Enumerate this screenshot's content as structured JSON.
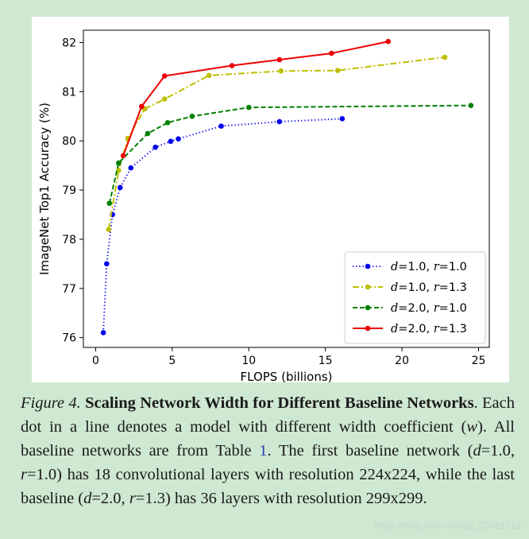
{
  "chart_data": {
    "type": "line",
    "xlabel": "FLOPS (billions)",
    "ylabel": "ImageNet Top1 Accuracy (%)",
    "xlim": [
      -0.8,
      25.7
    ],
    "ylim": [
      75.8,
      82.25
    ],
    "xticks": [
      0,
      5,
      10,
      15,
      20,
      25
    ],
    "yticks": [
      76,
      77,
      78,
      79,
      80,
      81,
      82
    ],
    "legend_position": "lower-right",
    "series": [
      {
        "name": "d=1.0, r=1.0",
        "legend_label": [
          "d",
          "=1.0, ",
          "r",
          "=1.0"
        ],
        "color": "#0000ee",
        "linestyle": "dotted",
        "x": [
          0.5,
          0.72,
          1.1,
          1.6,
          2.3,
          3.9,
          4.9,
          5.4,
          8.2,
          12.0,
          16.1
        ],
        "y": [
          76.1,
          77.5,
          78.5,
          79.05,
          79.45,
          79.87,
          79.99,
          80.04,
          80.3,
          80.39,
          80.45
        ]
      },
      {
        "name": "d=1.0, r=1.3",
        "legend_label": [
          "d",
          "=1.0, ",
          "r",
          "=1.3"
        ],
        "color": "#bfbf00",
        "linestyle": "dashdot",
        "x": [
          0.85,
          1.5,
          2.1,
          3.2,
          4.5,
          7.4,
          12.1,
          15.8,
          22.8
        ],
        "y": [
          78.2,
          79.4,
          80.05,
          80.65,
          80.85,
          81.33,
          81.42,
          81.43,
          81.7
        ]
      },
      {
        "name": "d=2.0, r=1.0",
        "legend_label": [
          "d",
          "=2.0, ",
          "r",
          "=1.0"
        ],
        "color": "#008000",
        "linestyle": "dashed",
        "x": [
          0.9,
          1.5,
          3.4,
          4.7,
          6.3,
          10.0,
          24.5
        ],
        "y": [
          78.73,
          79.55,
          80.15,
          80.37,
          80.5,
          80.68,
          80.72
        ]
      },
      {
        "name": "d=2.0, r=1.3",
        "legend_label": [
          "d",
          "=2.0, ",
          "r",
          "=1.3"
        ],
        "color": "#ee0000",
        "linestyle": "solid",
        "x": [
          1.8,
          3.0,
          4.5,
          8.9,
          12.0,
          15.4,
          19.1
        ],
        "y": [
          79.7,
          80.7,
          81.32,
          81.53,
          81.65,
          81.78,
          82.02
        ]
      }
    ]
  },
  "caption": {
    "figure_label": "Figure 4.",
    "title": "Scaling Network Width for Different Baseline Networks",
    "t1": ". Each dot in a line denotes a model with different width coefficient (",
    "w": "w",
    "t2": "). All baseline networks are from Table ",
    "table_ref": "1",
    "t3": ". The first baseline network (",
    "d1": "d",
    "t4": "=1.0, ",
    "r1": "r",
    "t5": "=1.0) has 18 convolutional layers with resolution 224x224, while the last baseline (",
    "d2": "d",
    "t6": "=2.0, ",
    "r2": "r",
    "t7": "=1.3) has 36 layers with resolution 299x299."
  },
  "watermark": "https://blog.csdn.net/qq_20481015"
}
